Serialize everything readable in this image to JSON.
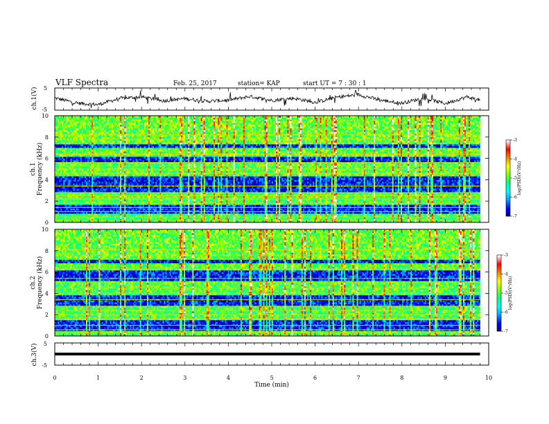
{
  "header": {
    "title": "VLF Spectra",
    "date": "Feb. 25, 2017",
    "station": "station= KAP",
    "start": "start UT =  7 : 30 : 1"
  },
  "chart_data": [
    {
      "type": "line",
      "ylabel": "ch.1(V)",
      "ylim": [
        -5,
        5
      ],
      "yticks": [
        "5",
        "-5"
      ],
      "series": [
        {
          "x": [
            0,
            0.5,
            1.0,
            1.5,
            2.0,
            2.5,
            3.0,
            3.5,
            4.0,
            4.5,
            5.0,
            5.5,
            6.0,
            6.5,
            7.0,
            7.5,
            8.0,
            8.5,
            9.0,
            9.5,
            9.8
          ],
          "values": [
            0.5,
            -1.8,
            -2.5,
            0.3,
            1.0,
            -0.8,
            0.2,
            -1.0,
            -0.5,
            1.2,
            -0.6,
            0.4,
            -1.5,
            0.8,
            2.0,
            -0.5,
            -1.8,
            0.4,
            -2.0,
            1.0,
            -0.5
          ]
        }
      ],
      "color": "#000000"
    },
    {
      "type": "heatmap",
      "ylabel": "ch.1\nFrequency (kHz)",
      "ylim": [
        0,
        10
      ],
      "yticks": [
        "0",
        "2",
        "4",
        "6",
        "8",
        "10"
      ],
      "colorbar": {
        "label": "log(PSD)(V²/Hz)",
        "ticks": [
          "-3",
          "-4",
          "-5",
          "-6",
          "-7"
        ],
        "range": [
          -7,
          -3
        ]
      },
      "features": {
        "low_power_bands_khz": [
          [
            0.9,
            1.7
          ],
          [
            2.9,
            4.4
          ],
          [
            5.6,
            6.1
          ],
          [
            7.0,
            7.4
          ]
        ],
        "line_frequencies_khz": [
          0.2,
          0.5,
          1.0,
          1.4,
          1.8,
          2.2,
          2.5,
          2.8,
          3.4,
          4.6,
          5.0,
          5.3,
          5.6,
          6.4,
          7.8,
          8.2
        ]
      }
    },
    {
      "type": "heatmap",
      "ylabel": "ch.2\nFrequency (kHz)",
      "ylim": [
        0,
        10
      ],
      "yticks": [
        "0",
        "2",
        "4",
        "6",
        "8",
        "10"
      ],
      "colorbar": {
        "label": "log(PSD)(V²/Hz)",
        "ticks": [
          "-3",
          "-4",
          "-5",
          "-6",
          "-7"
        ],
        "range": [
          -7,
          -3
        ]
      },
      "features": {
        "low_power_bands_khz": [
          [
            0.5,
            1.5
          ],
          [
            2.9,
            3.9
          ],
          [
            5.1,
            6.2
          ],
          [
            6.8,
            7.2
          ]
        ],
        "line_frequencies_khz": [
          0.3,
          0.6,
          1.0,
          1.6,
          2.0,
          2.4,
          2.8,
          3.4,
          4.0,
          4.5,
          5.0,
          5.4,
          6.3,
          7.6,
          8.1
        ]
      }
    },
    {
      "type": "line",
      "ylabel": "ch.3(V)",
      "ylim": [
        -5,
        5
      ],
      "yticks": [
        "5",
        "-5"
      ],
      "series": [
        {
          "x": [
            0,
            9.8
          ],
          "values": [
            0,
            0
          ]
        }
      ],
      "color": "#000000"
    }
  ],
  "xaxis": {
    "label": "Time (min)",
    "ticks": [
      "0",
      "1",
      "2",
      "3",
      "4",
      "5",
      "6",
      "7",
      "8",
      "9",
      "10"
    ],
    "xlim": [
      0,
      10
    ],
    "data_end": 9.8
  },
  "colormap": [
    "#000080",
    "#0000ff",
    "#00a0ff",
    "#00ffff",
    "#00ff80",
    "#80ff00",
    "#ffff00",
    "#ff8000",
    "#ff0000",
    "#ffffff"
  ]
}
